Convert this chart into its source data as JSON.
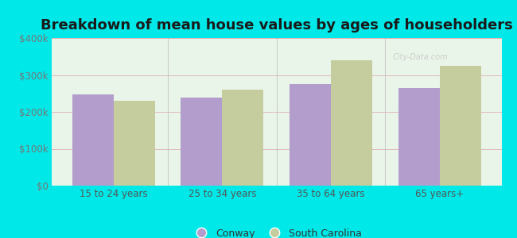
{
  "title": "Breakdown of mean house values by ages of householders",
  "categories": [
    "15 to 24 years",
    "25 to 34 years",
    "35 to 64 years",
    "65 years+"
  ],
  "conway_values": [
    248000,
    238000,
    275000,
    265000
  ],
  "sc_values": [
    230000,
    260000,
    340000,
    325000
  ],
  "conway_color": "#b39dcc",
  "sc_color": "#c5cc9d",
  "background_color": "#00e8e8",
  "plot_bg_top": "#f0f8f0",
  "plot_bg_bottom": "#e0f0e0",
  "ylim": [
    0,
    400000
  ],
  "yticks": [
    0,
    100000,
    200000,
    300000,
    400000
  ],
  "ytick_labels": [
    "$0",
    "$100k",
    "$200k",
    "$300k",
    "$400k"
  ],
  "legend_labels": [
    "Conway",
    "South Carolina"
  ],
  "title_fontsize": 13,
  "tick_fontsize": 8.5,
  "legend_fontsize": 9,
  "bar_width": 0.38,
  "watermark": "City-Data.com",
  "grid_color": "#e0b8b8",
  "divider_color": "#bbbbbb"
}
